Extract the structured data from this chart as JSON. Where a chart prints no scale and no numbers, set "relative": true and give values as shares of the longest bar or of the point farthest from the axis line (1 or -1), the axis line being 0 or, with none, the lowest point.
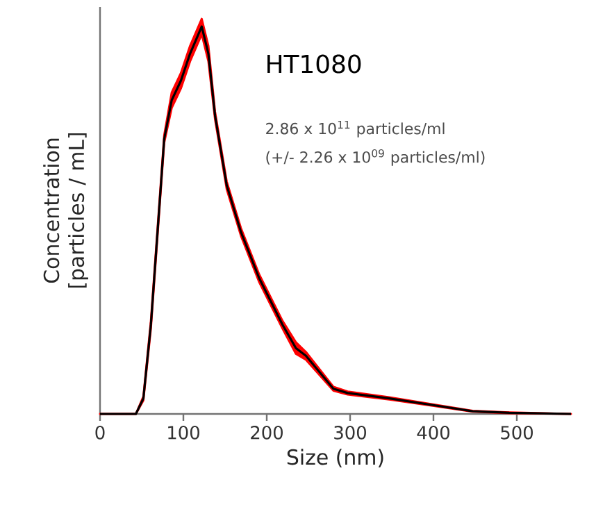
{
  "chart_data": {
    "type": "line",
    "relative": true,
    "xlabel": "Size (nm)",
    "ylabel": "Concentration [particles / mL]",
    "annotations": [
      "HT1080",
      "2.86 x 10$^{11}$ particles/ml",
      "(+/- 2.26 x 10$^{09}$ particles/ml)"
    ],
    "xlim": [
      0,
      565
    ],
    "xticks": [
      0,
      100,
      200,
      300,
      400,
      500
    ],
    "series": [
      {
        "color": "#000000",
        "x": [
          0,
          43,
          52,
          61,
          69,
          77,
          86,
          97,
          108,
          122,
          130,
          138,
          152,
          169,
          191,
          219,
          235,
          247,
          280,
          297,
          347,
          402,
          447,
          491,
          565
        ],
        "values": [
          0,
          0,
          0.04,
          0.23,
          0.47,
          0.71,
          0.81,
          0.86,
          0.93,
          1.0,
          0.93,
          0.77,
          0.59,
          0.47,
          0.35,
          0.23,
          0.17,
          0.15,
          0.065,
          0.054,
          0.04,
          0.022,
          0.007,
          0.003,
          0
        ],
        "lower": [
          0,
          0,
          0.035,
          0.22,
          0.46,
          0.7,
          0.79,
          0.84,
          0.91,
          0.98,
          0.91,
          0.76,
          0.58,
          0.46,
          0.34,
          0.22,
          0.155,
          0.14,
          0.06,
          0.05,
          0.037,
          0.02,
          0.006,
          0.002,
          0
        ],
        "upper": [
          0,
          0,
          0.045,
          0.24,
          0.48,
          0.72,
          0.83,
          0.88,
          0.95,
          1.02,
          0.95,
          0.78,
          0.6,
          0.48,
          0.36,
          0.24,
          0.185,
          0.16,
          0.07,
          0.058,
          0.043,
          0.024,
          0.008,
          0.004,
          0
        ]
      }
    ]
  }
}
